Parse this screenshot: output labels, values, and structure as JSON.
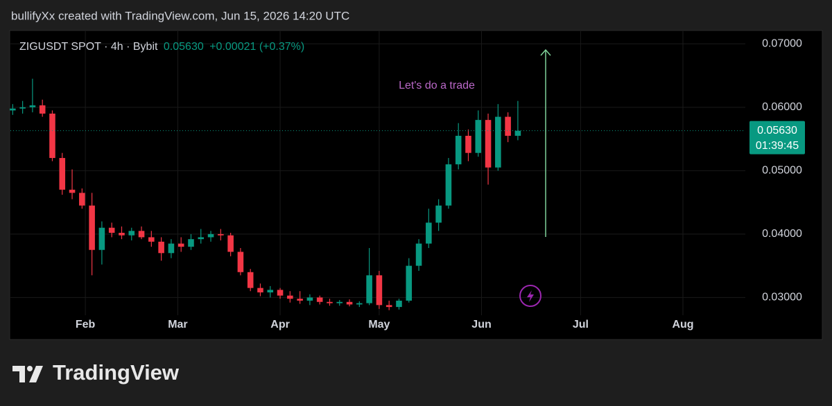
{
  "header": "bullifyXx created with TradingView.com, Jun 15, 2026 14:20 UTC",
  "brand": "TradingView",
  "chart_data": {
    "type": "candlestick",
    "symbol": "ZIGUSDT SPOT · 4h · Bybit",
    "price": "0.05630",
    "change": "+0.00021 (+0.37%)",
    "annotation": "Let's do a trade",
    "countdown": "01:39:45",
    "last_price": {
      "value": 0.0563,
      "label": "0.05630"
    },
    "up_color": "#089981",
    "down_color": "#f23645",
    "grid": true,
    "xlim": [
      8.3,
      230.9
    ],
    "xticks": [
      {
        "value": 31,
        "label": "Feb"
      },
      {
        "value": 59,
        "label": "Mar"
      },
      {
        "value": 90,
        "label": "Apr"
      },
      {
        "value": 120,
        "label": "May"
      },
      {
        "value": 151,
        "label": "Jun"
      },
      {
        "value": 181,
        "label": "Jul"
      },
      {
        "value": 212,
        "label": "Aug"
      }
    ],
    "ylim": [
      0.0272,
      0.072
    ],
    "yticks": [
      {
        "value": 0.03,
        "label": "0.03000"
      },
      {
        "value": 0.04,
        "label": "0.04000"
      },
      {
        "value": 0.05,
        "label": "0.05000"
      },
      {
        "value": 0.06,
        "label": "0.06000"
      },
      {
        "value": 0.07,
        "label": "0.07000"
      }
    ],
    "x": [
      9,
      12,
      15,
      18,
      21,
      24,
      27,
      30,
      33,
      36,
      39,
      42,
      45,
      48,
      51,
      54,
      57,
      60,
      63,
      66,
      69,
      72,
      75,
      78,
      81,
      84,
      87,
      90,
      93,
      96,
      99,
      102,
      105,
      108,
      111,
      114,
      117,
      120,
      123,
      126,
      129,
      132,
      135,
      138,
      141,
      144,
      147,
      150,
      153,
      156,
      159,
      162
    ],
    "open": [
      0.0595,
      0.0598,
      0.06,
      0.0603,
      0.059,
      0.052,
      0.047,
      0.0465,
      0.0445,
      0.0375,
      0.041,
      0.0402,
      0.0398,
      0.0405,
      0.0395,
      0.0388,
      0.037,
      0.0385,
      0.038,
      0.0392,
      0.0395,
      0.04,
      0.0398,
      0.0372,
      0.034,
      0.0315,
      0.0308,
      0.0312,
      0.0303,
      0.0298,
      0.0295,
      0.03,
      0.0293,
      0.0291,
      0.0293,
      0.0289,
      0.0291,
      0.0335,
      0.0288,
      0.0285,
      0.0295,
      0.035,
      0.0385,
      0.0418,
      0.0445,
      0.051,
      0.0555,
      0.0528,
      0.058,
      0.0505,
      0.0585,
      0.0555
    ],
    "high": [
      0.0605,
      0.061,
      0.0645,
      0.0612,
      0.0595,
      0.0528,
      0.0502,
      0.0472,
      0.0465,
      0.042,
      0.0418,
      0.0412,
      0.041,
      0.0412,
      0.0405,
      0.0395,
      0.0392,
      0.0395,
      0.04,
      0.0408,
      0.0405,
      0.0408,
      0.0402,
      0.0378,
      0.0345,
      0.0322,
      0.0318,
      0.0315,
      0.031,
      0.031,
      0.0305,
      0.0303,
      0.0298,
      0.0296,
      0.0297,
      0.0294,
      0.0378,
      0.0342,
      0.0295,
      0.0298,
      0.0362,
      0.0392,
      0.044,
      0.0455,
      0.052,
      0.0575,
      0.0565,
      0.0595,
      0.059,
      0.0605,
      0.0592,
      0.061
    ],
    "low": [
      0.0588,
      0.059,
      0.0592,
      0.0585,
      0.0515,
      0.0462,
      0.0455,
      0.044,
      0.0335,
      0.0352,
      0.0395,
      0.0392,
      0.039,
      0.0392,
      0.038,
      0.0358,
      0.0362,
      0.0372,
      0.0375,
      0.0385,
      0.0388,
      0.039,
      0.0365,
      0.0335,
      0.031,
      0.0302,
      0.03,
      0.0298,
      0.0292,
      0.029,
      0.0288,
      0.0289,
      0.0287,
      0.0287,
      0.0286,
      0.0285,
      0.0288,
      0.0282,
      0.028,
      0.0281,
      0.0292,
      0.0342,
      0.0378,
      0.0405,
      0.044,
      0.0502,
      0.0515,
      0.0522,
      0.0478,
      0.05,
      0.0545,
      0.0548
    ],
    "close": [
      0.0598,
      0.06,
      0.0603,
      0.059,
      0.052,
      0.047,
      0.0465,
      0.0445,
      0.0375,
      0.041,
      0.0402,
      0.0398,
      0.0405,
      0.0395,
      0.0388,
      0.037,
      0.0385,
      0.038,
      0.0392,
      0.0395,
      0.04,
      0.0398,
      0.0372,
      0.034,
      0.0315,
      0.0308,
      0.0312,
      0.0303,
      0.0298,
      0.0295,
      0.03,
      0.0293,
      0.0291,
      0.0293,
      0.0289,
      0.0291,
      0.0335,
      0.0288,
      0.0285,
      0.0295,
      0.035,
      0.0385,
      0.0418,
      0.0445,
      0.051,
      0.0555,
      0.0528,
      0.058,
      0.0505,
      0.0585,
      0.0555,
      0.0563
    ]
  }
}
